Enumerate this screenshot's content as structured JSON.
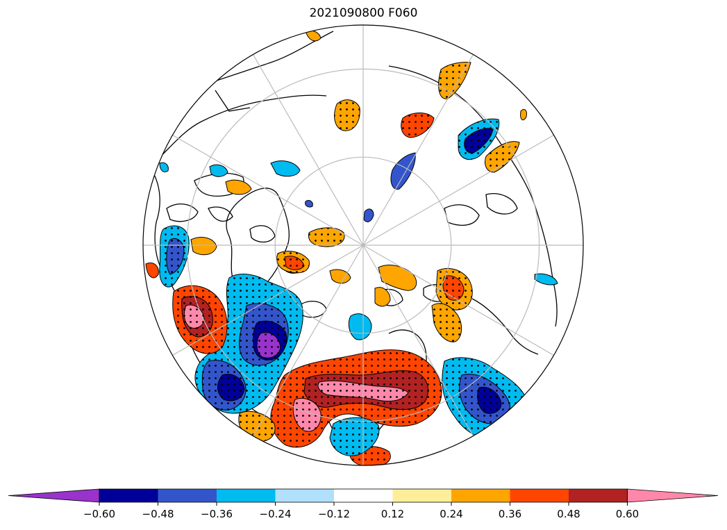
{
  "figure": {
    "title": "2021090800 F060"
  },
  "colorbar": {
    "extend": "both",
    "orientation": "horizontal",
    "colors": [
      "#9933cc",
      "#000099",
      "#3355cc",
      "#00bbf0",
      "#b0e0fb",
      "#ffffff",
      "#ffee99",
      "#ffa500",
      "#ff4500",
      "#b22222",
      "#ff88aa"
    ],
    "ticks": [
      "−0.60",
      "−0.48",
      "−0.36",
      "−0.24",
      "−0.12",
      "0.12",
      "0.24",
      "0.36",
      "0.48",
      "0.60"
    ]
  },
  "map": {
    "projection": "north-polar-stereographic",
    "graticule_color": "#bbbbbb",
    "coastline_color": "#000000",
    "stippling": "dots mark significant regions"
  }
}
